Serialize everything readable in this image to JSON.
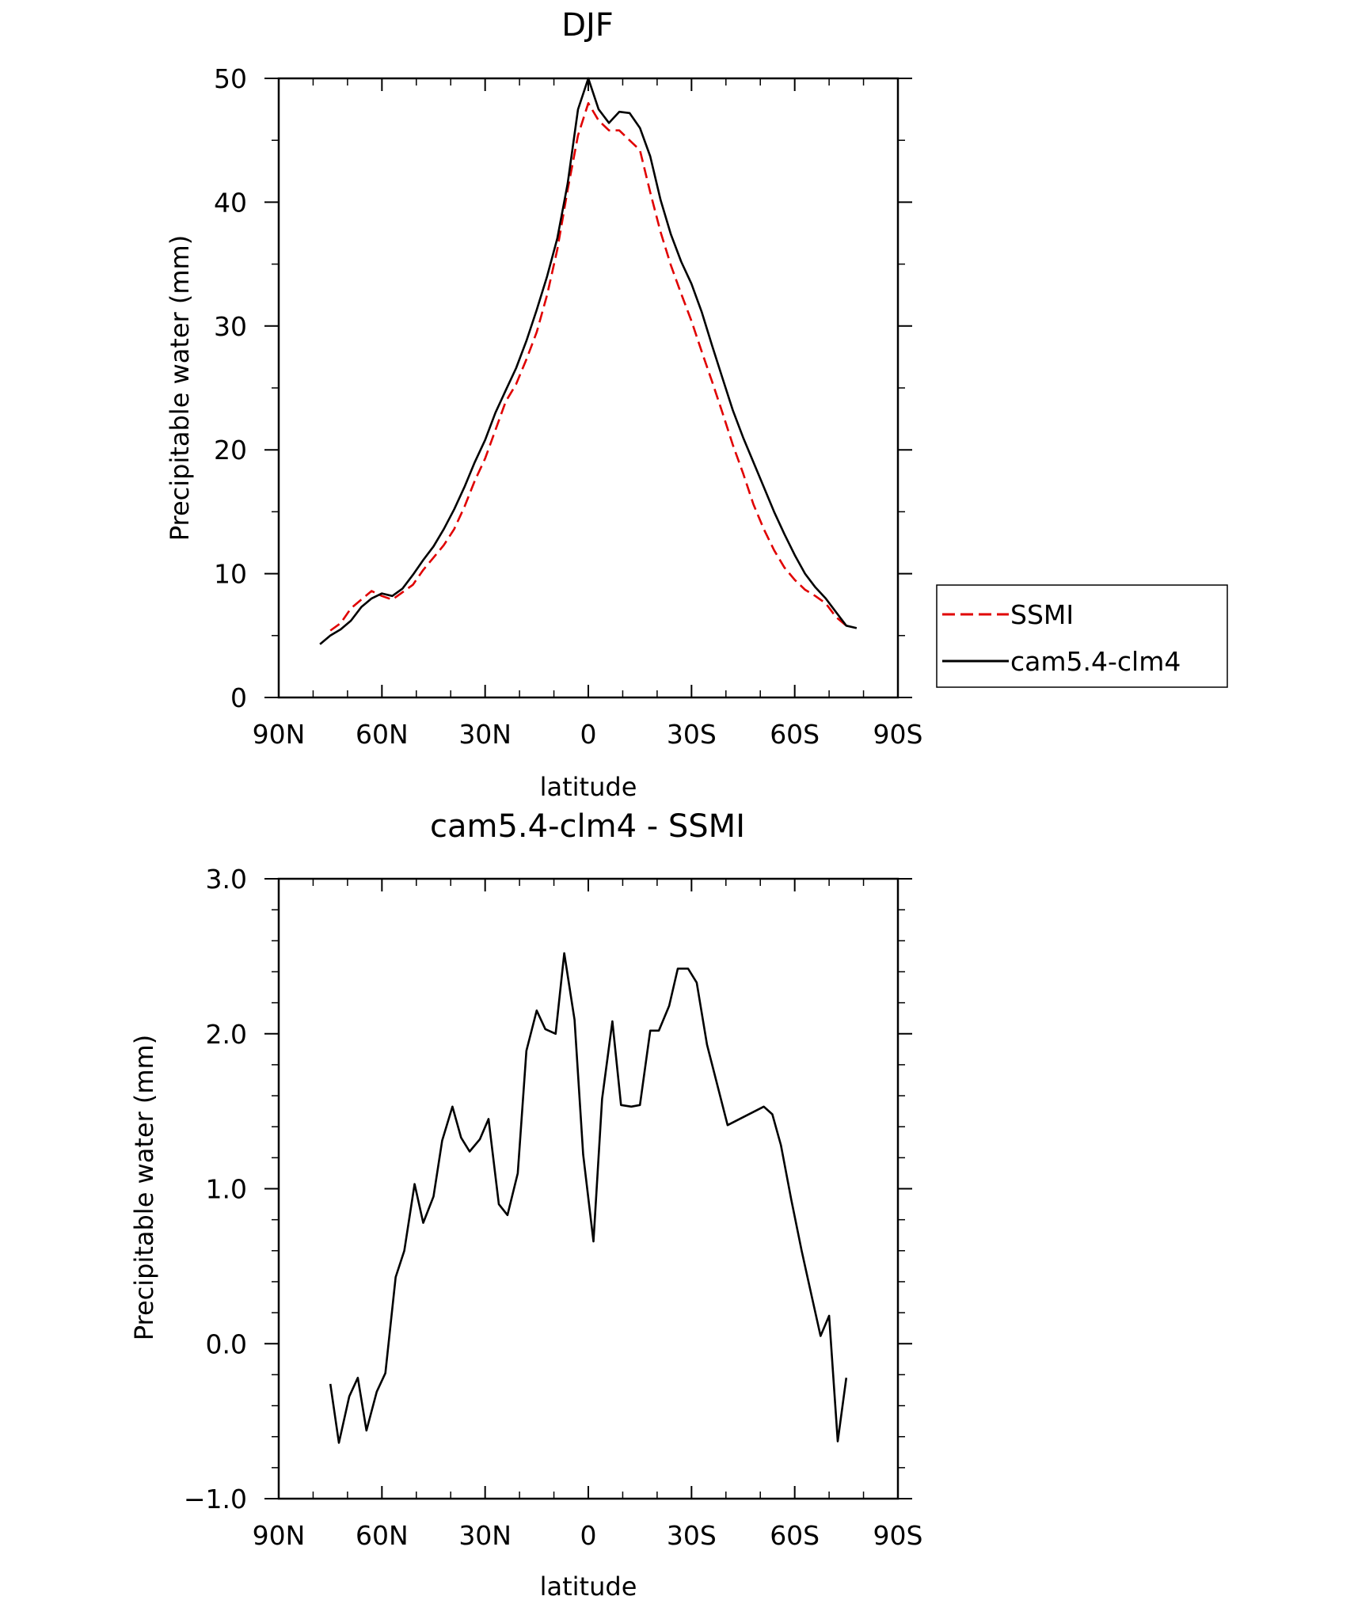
{
  "chart_data": [
    {
      "type": "line",
      "title": "DJF",
      "xlabel": "latitude",
      "ylabel": "Precipitable water (mm)",
      "xlim": [
        90,
        -90
      ],
      "ylim": [
        0,
        50
      ],
      "x_ticks": [
        90,
        60,
        30,
        0,
        -30,
        -60,
        -90
      ],
      "x_tick_labels": [
        "90N",
        "60N",
        "30N",
        "0",
        "30S",
        "60S",
        "90S"
      ],
      "y_ticks": [
        0,
        10,
        20,
        30,
        40,
        50
      ],
      "y_tick_labels": [
        "0",
        "10",
        "20",
        "30",
        "40",
        "50"
      ],
      "legend_position": "right",
      "series": [
        {
          "name": "SSMI",
          "color": "#e00000",
          "style": "dashed",
          "x": [
            75,
            72,
            69,
            66,
            63,
            60,
            57,
            54,
            51,
            48,
            45,
            42,
            39,
            36,
            33,
            30,
            27,
            24,
            21,
            18,
            15,
            12,
            9,
            6,
            3,
            0,
            -3,
            -6,
            -9,
            -12,
            -15,
            -18,
            -21,
            -24,
            -27,
            -30,
            -33,
            -36,
            -39,
            -42,
            -45,
            -48,
            -51,
            -54,
            -57,
            -60,
            -63,
            -66,
            -69,
            -72,
            -75
          ],
          "values": [
            5.4,
            6.0,
            7.2,
            7.9,
            8.6,
            8.2,
            7.9,
            8.5,
            9.1,
            10.3,
            11.3,
            12.3,
            13.6,
            15.4,
            17.5,
            19.3,
            21.6,
            23.9,
            25.3,
            27.3,
            29.5,
            32.5,
            36.2,
            41.0,
            45.4,
            48.0,
            46.6,
            45.8,
            45.8,
            45.0,
            44.2,
            40.8,
            37.6,
            34.9,
            32.6,
            30.4,
            27.9,
            25.5,
            23.0,
            20.4,
            18.1,
            15.6,
            13.6,
            11.9,
            10.5,
            9.5,
            8.7,
            8.2,
            7.6,
            6.5,
            5.8
          ]
        },
        {
          "name": "cam5.4-clm4",
          "color": "#000000",
          "style": "solid",
          "x": [
            78,
            75,
            72,
            69,
            66,
            63,
            60,
            57,
            54,
            51,
            48,
            45,
            42,
            39,
            36,
            33,
            30,
            27,
            24,
            21,
            18,
            15,
            12,
            9,
            6,
            3,
            0,
            -3,
            -6,
            -9,
            -12,
            -15,
            -18,
            -21,
            -24,
            -27,
            -30,
            -33,
            -36,
            -39,
            -42,
            -45,
            -48,
            -51,
            -54,
            -57,
            -60,
            -63,
            -66,
            -69,
            -72,
            -75,
            -78
          ],
          "values": [
            4.3,
            5.0,
            5.5,
            6.2,
            7.3,
            8.0,
            8.4,
            8.2,
            8.8,
            9.9,
            11.1,
            12.2,
            13.6,
            15.2,
            17.0,
            19.0,
            20.8,
            23.0,
            24.8,
            26.6,
            28.8,
            31.3,
            34.0,
            37.1,
            41.5,
            47.5,
            50.0,
            47.5,
            46.4,
            47.3,
            47.2,
            46.0,
            43.7,
            40.2,
            37.4,
            35.2,
            33.4,
            31.1,
            28.4,
            25.8,
            23.2,
            21.0,
            19.0,
            17.0,
            15.0,
            13.2,
            11.5,
            10.0,
            8.9,
            8.0,
            6.9,
            5.8,
            5.6
          ]
        }
      ]
    },
    {
      "type": "line",
      "title": "cam5.4-clm4 - SSMI",
      "xlabel": "latitude",
      "ylabel": "Precipitable water (mm)",
      "xlim": [
        90,
        -90
      ],
      "ylim": [
        -1.0,
        3.0
      ],
      "x_ticks": [
        90,
        60,
        30,
        0,
        -30,
        -60,
        -90
      ],
      "x_tick_labels": [
        "90N",
        "60N",
        "30N",
        "0",
        "30S",
        "60S",
        "90S"
      ],
      "y_ticks": [
        -1.0,
        0.0,
        1.0,
        2.0,
        3.0
      ],
      "y_tick_labels": [
        "-1.0",
        "0.0",
        "1.0",
        "2.0",
        "3.0"
      ],
      "series": [
        {
          "color": "#000000",
          "style": "solid",
          "x": [
            75,
            72.5,
            69.5,
            67,
            64.5,
            61.5,
            59,
            56,
            53.5,
            50.5,
            48,
            45,
            42.5,
            39.5,
            37,
            34.5,
            31.5,
            29,
            26,
            23.5,
            20.5,
            18,
            15,
            12.5,
            9.5,
            7,
            4,
            1.5,
            -1.5,
            -4,
            -7,
            -9.5,
            -12.5,
            -15,
            -18,
            -20.5,
            -23.5,
            -26,
            -29,
            -31.5,
            -34.5,
            -40.5,
            -51,
            -53.5,
            -56,
            -59,
            -62,
            -65,
            -67.5,
            -70,
            -72.5,
            -75
          ],
          "values": [
            -0.26,
            -0.64,
            -0.34,
            -0.22,
            -0.56,
            -0.31,
            -0.19,
            0.43,
            0.6,
            1.03,
            0.78,
            0.95,
            1.31,
            1.53,
            1.33,
            1.24,
            1.32,
            1.45,
            0.9,
            0.83,
            1.1,
            1.89,
            2.15,
            2.03,
            2.0,
            2.52,
            2.09,
            1.22,
            0.66,
            1.58,
            2.08,
            1.54,
            1.53,
            1.54,
            2.02,
            2.02,
            2.18,
            2.42,
            2.42,
            2.33,
            1.93,
            1.41,
            1.53,
            1.48,
            1.28,
            0.93,
            0.6,
            0.3,
            0.05,
            0.18,
            -0.63,
            -0.22
          ]
        }
      ]
    }
  ]
}
